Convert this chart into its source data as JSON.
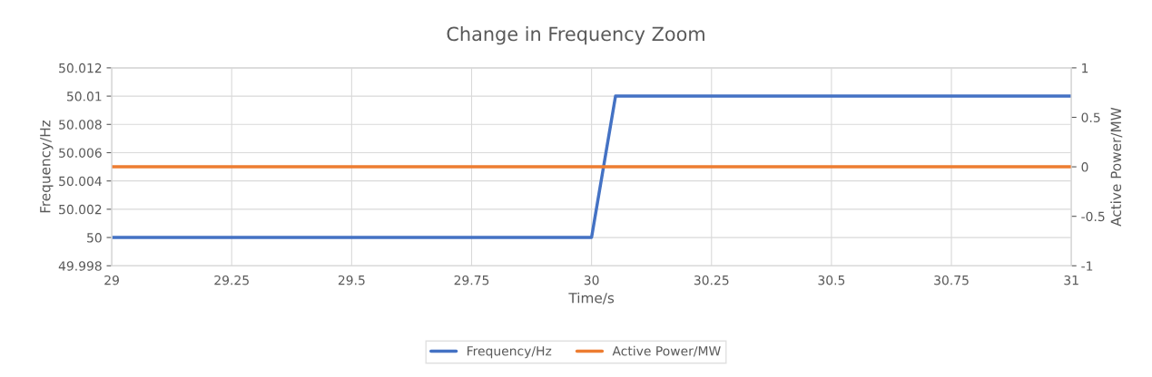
{
  "chart_data": {
    "type": "line",
    "title": "Change in Frequency Zoom",
    "xlabel": "Time/s",
    "ylabel": "Frequency/Hz",
    "y2label": "Active Power/MW",
    "series": [
      {
        "name": "Frequency/Hz",
        "color": "#4472c4",
        "x": [
          29,
          30,
          30.05,
          31
        ],
        "values": [
          50,
          50,
          50.01,
          50.01
        ]
      },
      {
        "name": "Active Power/MW",
        "color": "#ed7d31",
        "x": [
          29,
          31
        ],
        "values": [
          0,
          0
        ],
        "axis": "y2"
      }
    ],
    "xlim": [
      29,
      31
    ],
    "xticks": [
      29,
      29.25,
      29.5,
      29.75,
      30,
      30.25,
      30.5,
      30.75,
      31
    ],
    "ylim": [
      49.998,
      50.012
    ],
    "yticks": [
      49.998,
      50,
      50.002,
      50.004,
      50.006,
      50.008,
      50.01,
      50.012
    ],
    "y2lim": [
      -1,
      1
    ],
    "y2ticks": [
      {
        "value": -1,
        "label": "-1"
      },
      {
        "value": -0.5,
        "label": "-0.5"
      },
      0,
      0.5,
      1
    ],
    "grid": true,
    "legend": "bottom",
    "marker": "none",
    "line_style": "solid"
  }
}
